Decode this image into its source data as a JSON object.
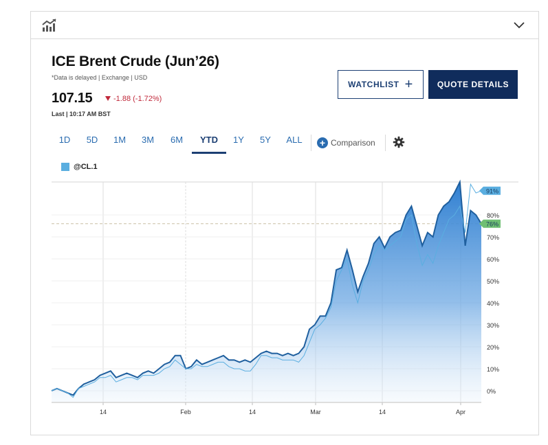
{
  "header": {
    "chart_icon": "bar-chart-trend-icon",
    "collapse_icon": "chevron-down-icon"
  },
  "quote": {
    "title": "ICE Brent Crude (Jun’26)",
    "subtitle": "*Data is delayed | Exchange | USD",
    "price": "107.15",
    "change": "-1.88 (-1.72%)",
    "change_color": "#c0283a",
    "last": "Last | 10:17 AM BST"
  },
  "buttons": {
    "watchlist": "WATCHLIST",
    "quote_details": "QUOTE DETAILS"
  },
  "tabs": [
    {
      "label": "1D",
      "active": false
    },
    {
      "label": "5D",
      "active": false
    },
    {
      "label": "1M",
      "active": false
    },
    {
      "label": "3M",
      "active": false
    },
    {
      "label": "6M",
      "active": false
    },
    {
      "label": "YTD",
      "active": true
    },
    {
      "label": "1Y",
      "active": false
    },
    {
      "label": "5Y",
      "active": false
    },
    {
      "label": "ALL",
      "active": false
    }
  ],
  "comparison_label": "Comparison",
  "legend": {
    "label": "@CL.1",
    "color": "#5aaee0"
  },
  "colors": {
    "brand": "#102c5c",
    "link": "#2a6cb0",
    "area": "#2f7fd1",
    "comparison_line": "#5aaee0",
    "badge_blue": "#5aaee0",
    "badge_green": "#6fbf73"
  },
  "chart_data": {
    "type": "area",
    "y_unit": "% change",
    "x_tick_labels": [
      "14",
      "Feb",
      "14",
      "Mar",
      "14",
      "Apr"
    ],
    "y_tick_labels": [
      "0%",
      "10%",
      "20%",
      "30%",
      "40%",
      "50%",
      "60%",
      "70%",
      "80%"
    ],
    "ylim": [
      -5,
      95
    ],
    "reference_line": 76,
    "end_labels": [
      "91%",
      "76%"
    ],
    "series": [
      {
        "values": [
          0,
          1,
          0,
          -1,
          -2,
          1,
          3,
          4,
          5,
          7,
          8,
          9,
          6,
          7,
          8,
          7,
          6,
          8,
          9,
          8,
          10,
          12,
          13,
          16,
          16,
          10,
          11,
          14,
          12,
          13,
          14,
          15,
          16,
          14,
          14,
          13,
          14,
          13,
          15,
          17,
          18,
          17,
          17,
          16,
          17,
          16,
          17,
          20,
          28,
          30,
          34,
          34,
          40,
          55,
          56,
          64,
          55,
          45,
          52,
          58,
          67,
          70,
          65,
          70,
          72,
          73,
          80,
          84,
          75,
          66,
          72,
          70,
          80,
          84,
          86,
          90,
          95,
          66,
          82,
          80,
          76
        ]
      },
      {
        "values": [
          0,
          1,
          0,
          -1,
          -3,
          1,
          2,
          3,
          4,
          6,
          6,
          7,
          4,
          5,
          6,
          6,
          5,
          7,
          7,
          7,
          8,
          10,
          11,
          14,
          12,
          10,
          10,
          12,
          11,
          11,
          12,
          13,
          13,
          11,
          10,
          10,
          9,
          9,
          12,
          16,
          16,
          15,
          15,
          14,
          14,
          14,
          13,
          16,
          22,
          28,
          30,
          33,
          38,
          50,
          55,
          60,
          48,
          40,
          50,
          55,
          62,
          66,
          64,
          66,
          68,
          70,
          78,
          80,
          67,
          57,
          62,
          58,
          66,
          72,
          78,
          80,
          84,
          72,
          94,
          90,
          91
        ]
      }
    ]
  }
}
